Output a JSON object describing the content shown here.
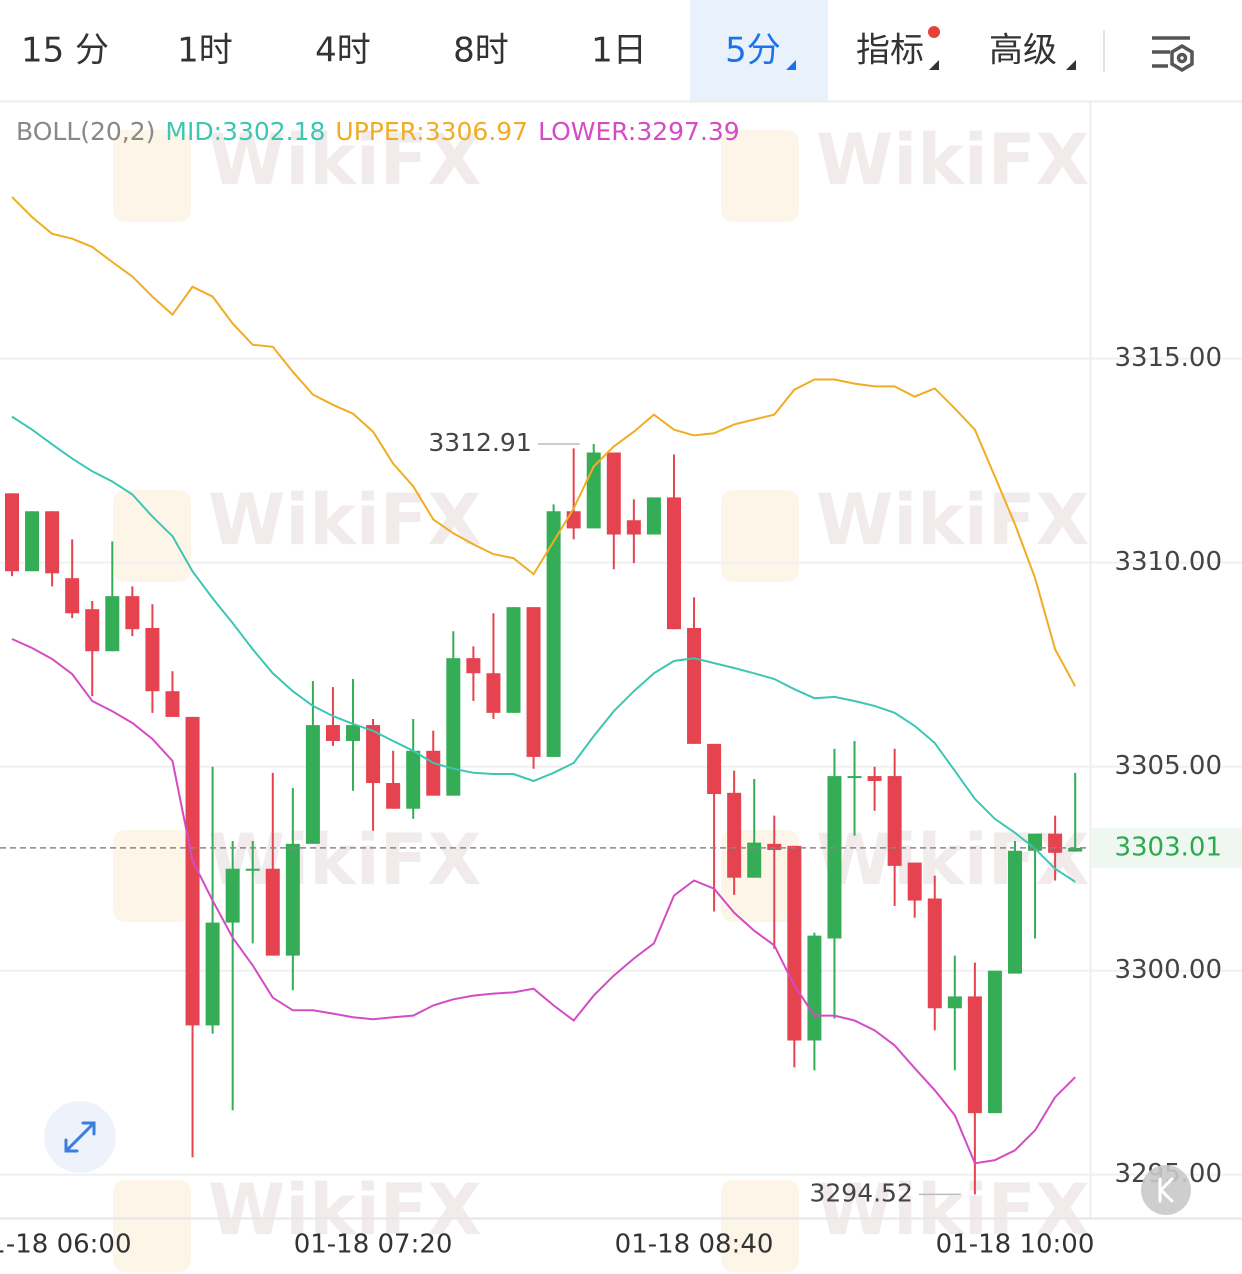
{
  "tabs": [
    "15 分",
    "1时",
    "4时",
    "8时",
    "1日",
    "5分",
    "指标",
    "高级"
  ],
  "active_tab": 5,
  "watermark": "WikiFX",
  "chart_data": {
    "type": "candlestick",
    "indicator_label": "BOLL(20,2)",
    "categories": [
      null,
      null,
      "01-18 06:00",
      null,
      null,
      null,
      null,
      null,
      null,
      null,
      null,
      null,
      null,
      null,
      null,
      null,
      null,
      null,
      "01-18 07:20",
      null,
      null,
      null,
      null,
      null,
      null,
      null,
      null,
      null,
      null,
      null,
      null,
      null,
      null,
      null,
      "01-18 08:40",
      null,
      null,
      null,
      null,
      null,
      null,
      null,
      null,
      null,
      null,
      null,
      null,
      null,
      null,
      null,
      "01-18 10:00",
      null,
      null,
      null
    ],
    "open": [
      3311.7,
      3309.79,
      3311.26,
      3309.62,
      3308.86,
      3307.83,
      3309.18,
      3308.4,
      3306.85,
      3306.22,
      3298.66,
      3301.18,
      3302.45,
      3302.5,
      3300.37,
      3303.11,
      3306.02,
      3305.63,
      3306.02,
      3304.6,
      3303.97,
      3305.39,
      3304.29,
      3307.66,
      3307.29,
      3306.32,
      3308.91,
      3305.24,
      3311.26,
      3310.84,
      3312.7,
      3311.04,
      3310.69,
      3311.6,
      3308.4,
      3305.56,
      3304.36,
      3302.28,
      3303.11,
      3303.06,
      3298.29,
      3300.79,
      3304.73,
      3304.77,
      3304.77,
      3302.65,
      3301.77,
      3299.08,
      3299.37,
      3296.51,
      3299.93,
      3302.94,
      3303.36,
      3302.92
    ],
    "high": [
      3311.7,
      3311.26,
      3311.26,
      3310.57,
      3309.06,
      3310.52,
      3309.42,
      3308.98,
      3307.34,
      3306.22,
      3305.0,
      3303.18,
      3303.18,
      3304.85,
      3304.48,
      3307.1,
      3306.95,
      3307.15,
      3306.17,
      3305.39,
      3306.17,
      3305.88,
      3308.32,
      3307.95,
      3308.76,
      3308.91,
      3308.91,
      3311.43,
      3312.8,
      3312.91,
      3312.7,
      3311.55,
      3311.6,
      3312.65,
      3309.15,
      3305.56,
      3304.9,
      3304.7,
      3303.8,
      3303.06,
      3300.93,
      3305.44,
      3305.63,
      3305.0,
      3305.44,
      3302.65,
      3302.33,
      3300.37,
      3300.2,
      3300.0,
      3303.18,
      3303.36,
      3303.8,
      3304.85
    ],
    "low": [
      3309.67,
      3309.79,
      3309.42,
      3308.64,
      3306.73,
      3307.83,
      3308.2,
      3306.32,
      3306.22,
      3295.43,
      3298.46,
      3296.58,
      3300.67,
      3300.37,
      3299.52,
      3303.11,
      3305.51,
      3304.41,
      3303.43,
      3303.97,
      3303.72,
      3304.29,
      3304.29,
      3306.61,
      3306.17,
      3306.32,
      3304.95,
      3305.24,
      3310.57,
      3310.84,
      3309.84,
      3309.99,
      3310.69,
      3308.37,
      3305.56,
      3301.45,
      3301.86,
      3302.28,
      3300.54,
      3297.63,
      3297.56,
      3298.83,
      3303.31,
      3303.92,
      3301.59,
      3301.3,
      3298.54,
      3297.56,
      3294.52,
      3296.51,
      3299.93,
      3300.79,
      3302.21,
      3302.92
    ],
    "close": [
      3309.79,
      3311.26,
      3309.74,
      3308.76,
      3307.83,
      3309.18,
      3308.37,
      3306.85,
      3306.22,
      3298.66,
      3301.18,
      3302.5,
      3302.5,
      3300.37,
      3303.11,
      3306.02,
      3305.63,
      3306.02,
      3304.6,
      3303.97,
      3305.39,
      3304.29,
      3307.66,
      3307.29,
      3306.32,
      3308.91,
      3305.24,
      3311.26,
      3310.84,
      3312.7,
      3310.69,
      3310.69,
      3311.6,
      3308.37,
      3305.56,
      3304.33,
      3302.28,
      3303.14,
      3302.96,
      3298.29,
      3300.86,
      3304.77,
      3304.77,
      3304.65,
      3302.57,
      3301.72,
      3299.08,
      3299.37,
      3296.51,
      3300.0,
      3302.94,
      3303.36,
      3302.89,
      3303.01
    ],
    "up_color": "#35ad57",
    "down_color": "#e4434f",
    "series": [
      {
        "name": "MID:3302.18",
        "color": "#3dc6b3",
        "values": [
          3313.58,
          3313.26,
          3312.9,
          3312.55,
          3312.24,
          3311.99,
          3311.67,
          3311.13,
          3310.65,
          3309.79,
          3309.13,
          3308.52,
          3307.88,
          3307.29,
          3306.85,
          3306.49,
          3306.24,
          3306.05,
          3305.88,
          3305.63,
          3305.39,
          3305.09,
          3304.95,
          3304.85,
          3304.82,
          3304.82,
          3304.65,
          3304.85,
          3305.09,
          3305.75,
          3306.36,
          3306.85,
          3307.29,
          3307.59,
          3307.66,
          3307.54,
          3307.42,
          3307.29,
          3307.15,
          3306.9,
          3306.68,
          3306.71,
          3306.61,
          3306.49,
          3306.32,
          3306.0,
          3305.58,
          3304.9,
          3304.21,
          3303.72,
          3303.38,
          3302.99,
          3302.5,
          3302.18
        ]
      },
      {
        "name": "UPPER:3306.97",
        "color": "#f0ad24",
        "values": [
          3318.96,
          3318.47,
          3318.06,
          3317.94,
          3317.74,
          3317.37,
          3317.01,
          3316.52,
          3316.08,
          3316.76,
          3316.52,
          3315.86,
          3315.34,
          3315.29,
          3314.68,
          3314.12,
          3313.87,
          3313.65,
          3313.21,
          3312.43,
          3311.87,
          3311.06,
          3310.72,
          3310.45,
          3310.21,
          3310.11,
          3309.72,
          3310.52,
          3311.33,
          3312.36,
          3312.85,
          3313.21,
          3313.63,
          3313.26,
          3313.12,
          3313.17,
          3313.39,
          3313.51,
          3313.63,
          3314.24,
          3314.49,
          3314.49,
          3314.39,
          3314.32,
          3314.32,
          3314.07,
          3314.27,
          3313.78,
          3313.26,
          3312.11,
          3310.94,
          3309.62,
          3307.88,
          3306.97
        ]
      },
      {
        "name": "LOWER:3297.39",
        "color": "#d34cc4",
        "values": [
          3308.13,
          3307.91,
          3307.64,
          3307.27,
          3306.61,
          3306.36,
          3306.07,
          3305.68,
          3305.14,
          3302.7,
          3301.72,
          3300.81,
          3300.13,
          3299.34,
          3299.03,
          3299.03,
          3298.95,
          3298.86,
          3298.81,
          3298.86,
          3298.9,
          3299.15,
          3299.3,
          3299.39,
          3299.44,
          3299.47,
          3299.56,
          3299.15,
          3298.78,
          3299.39,
          3299.88,
          3300.3,
          3300.67,
          3301.84,
          3302.21,
          3302.01,
          3301.42,
          3300.98,
          3300.62,
          3299.64,
          3298.9,
          3298.9,
          3298.78,
          3298.54,
          3298.17,
          3297.61,
          3297.07,
          3296.46,
          3295.28,
          3295.36,
          3295.6,
          3296.09,
          3296.9,
          3297.39
        ]
      }
    ],
    "ylim": [
      3293.94,
      3321.29
    ],
    "yticks": [
      {
        "value": 3295,
        "label": "3295.00"
      },
      {
        "value": 3300,
        "label": "3300.00"
      },
      {
        "value": 3305,
        "label": "3305.00"
      },
      {
        "value": 3310,
        "label": "3310.00"
      },
      {
        "value": 3315,
        "label": "3315.00"
      }
    ],
    "grid": true,
    "last_price": 3303.01,
    "high_label": 3312.91,
    "low_label": 3294.52
  }
}
